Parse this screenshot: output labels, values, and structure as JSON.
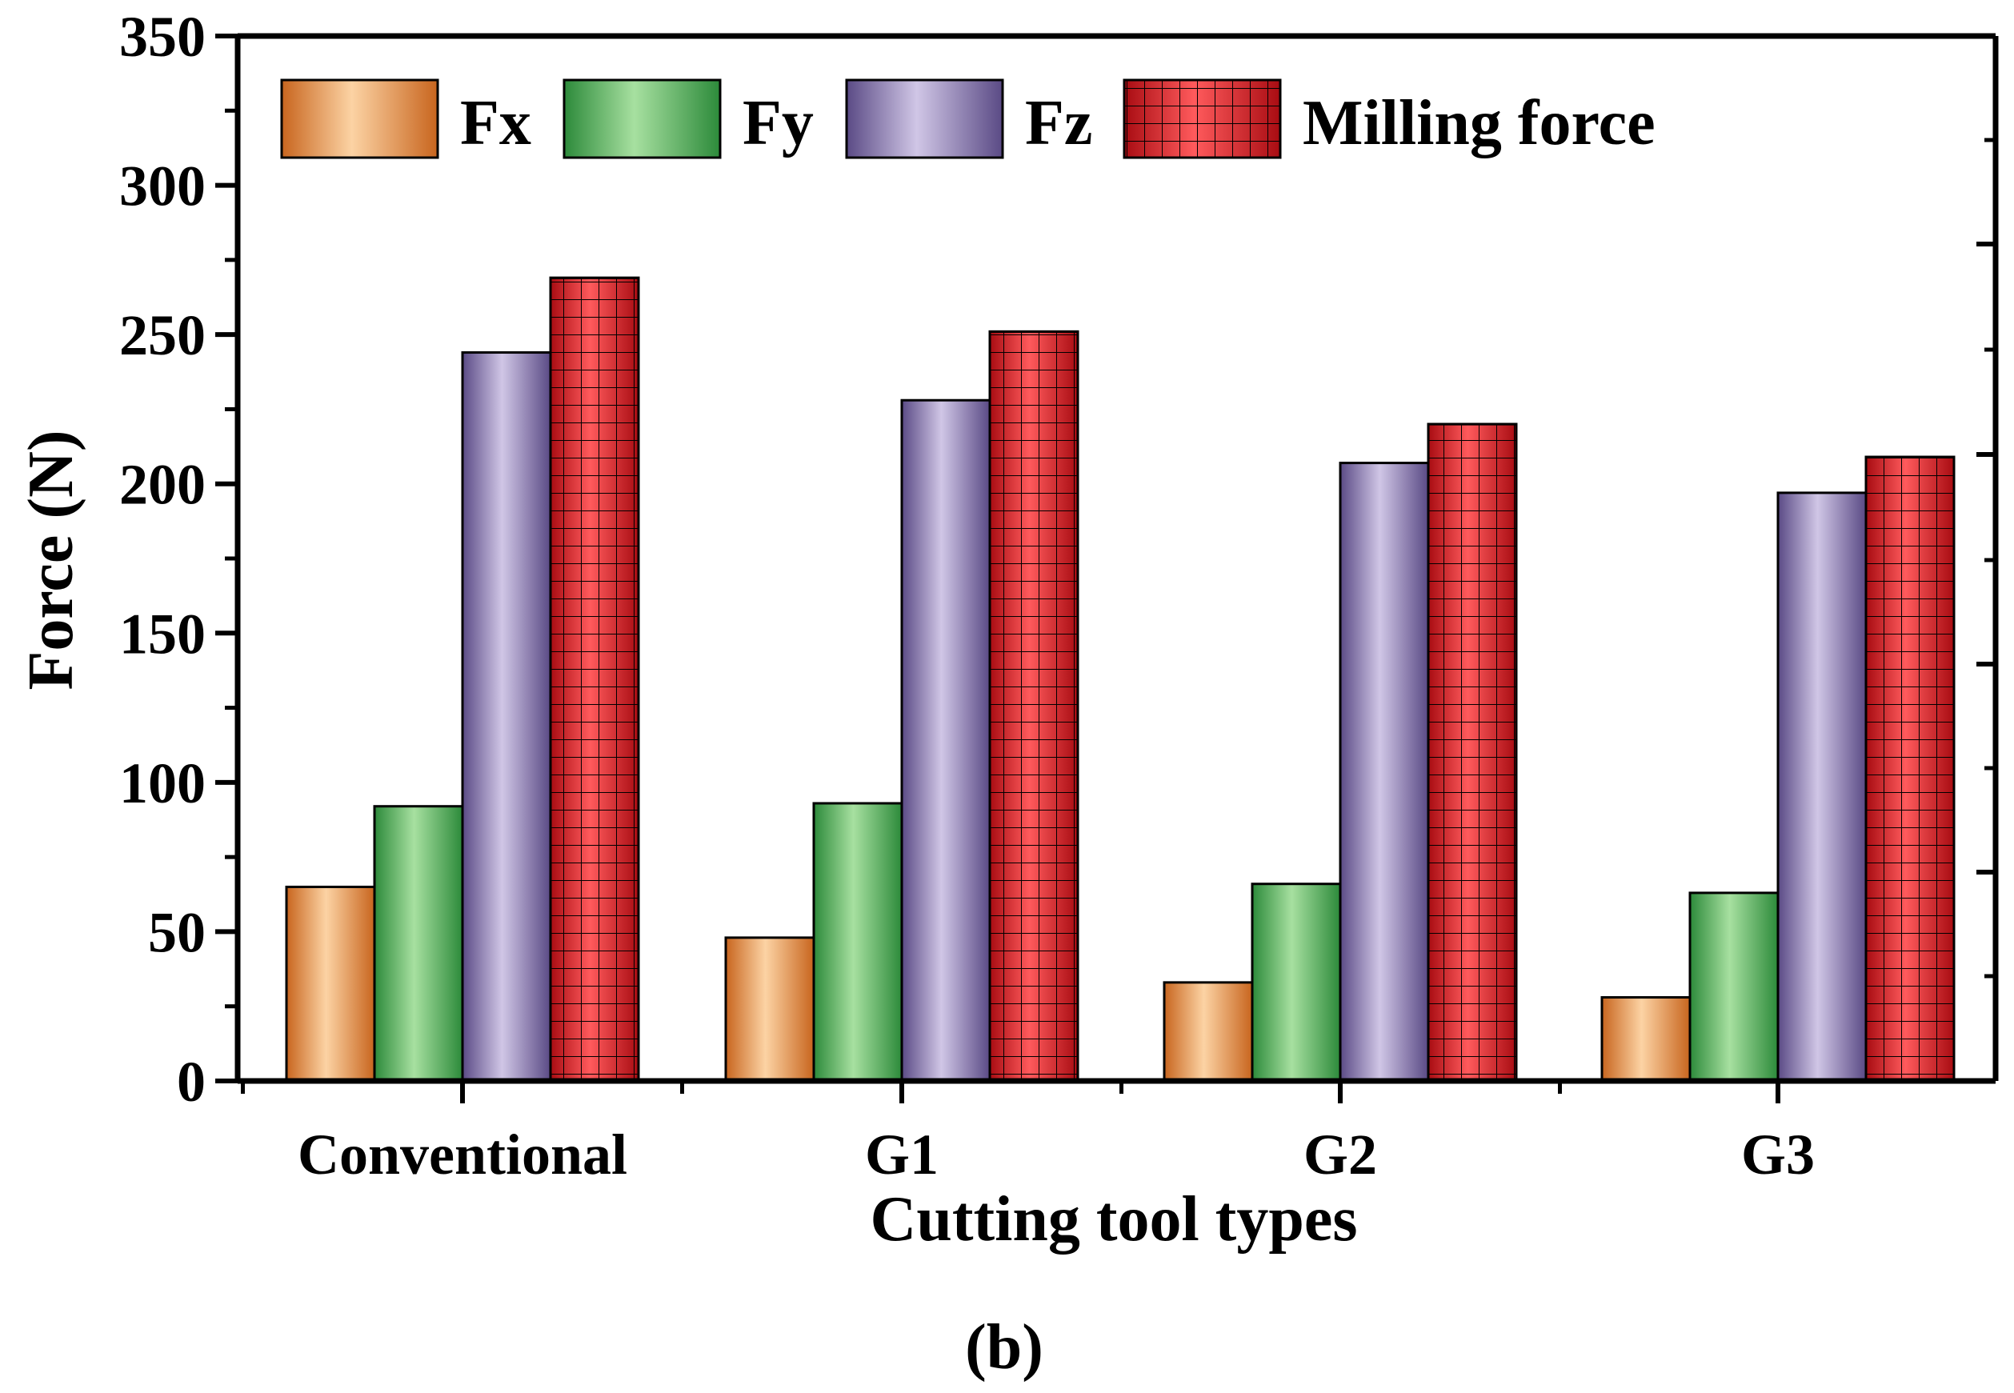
{
  "chart_data": {
    "type": "bar",
    "title": "",
    "xlabel": "Cutting tool types",
    "ylabel": "Force (N)",
    "ylim": [
      0,
      350
    ],
    "yticks": [
      "0",
      "50",
      "100",
      "150",
      "200",
      "250",
      "300",
      "350"
    ],
    "categories": [
      "Conventional",
      "G1",
      "G2",
      "G3"
    ],
    "series": [
      {
        "name": "Fx",
        "values": [
          65,
          48,
          33,
          28
        ],
        "color": "#e8a36a"
      },
      {
        "name": "Fy",
        "values": [
          92,
          93,
          66,
          63
        ],
        "color": "#6cc070"
      },
      {
        "name": "Fz",
        "values": [
          244,
          228,
          207,
          197
        ],
        "color": "#a99ac8"
      },
      {
        "name": "Milling force",
        "values": [
          269,
          251,
          220,
          209
        ],
        "color": "#f0474a"
      }
    ],
    "legend_position": "top-left",
    "caption": "(b)"
  }
}
